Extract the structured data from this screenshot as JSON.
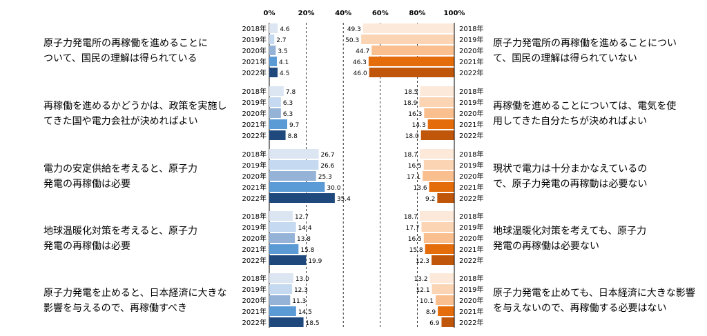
{
  "chart_data": {
    "type": "bar",
    "orientation": "horizontal-diverging",
    "axis": {
      "ticks": [
        "0%",
        "20%",
        "40%",
        "60%",
        "80%",
        "100%"
      ],
      "xlim": [
        0,
        100
      ],
      "grid": "dashed"
    },
    "years": [
      "2018年",
      "2019年",
      "2020年",
      "2021年",
      "2022年"
    ],
    "colors": {
      "left": [
        "#dce6f2",
        "#c5d9f1",
        "#95b3d7",
        "#5b9bd5",
        "#1f497d"
      ],
      "right": [
        "#fde9d9",
        "#fbd4b4",
        "#fabf8f",
        "#e46c0a",
        "#c0560a"
      ]
    },
    "groups": [
      {
        "left_label": [
          "原子力発電所の再稼働を進めることに",
          "ついて、国民の理解は得られている"
        ],
        "right_label": [
          "原子力発電所の再稼働を進めることについ",
          "て、国民の理解は得られていない"
        ],
        "left_values": [
          4.6,
          2.7,
          3.5,
          4.1,
          4.5
        ],
        "right_values": [
          49.3,
          50.3,
          44.7,
          46.3,
          46.0
        ],
        "left_text": [
          "4.6",
          "2.7",
          "3.5",
          "4.1",
          "4.5"
        ],
        "right_text": [
          "49.3",
          "50.3",
          "44.7",
          "46.3",
          "46.0"
        ]
      },
      {
        "left_label": [
          "再稼働を進めるかどうかは、政策を実施し",
          "てきた国や電力会社が決めればよい"
        ],
        "right_label": [
          "再稼働を進めることについては、電気を使",
          "用してきた自分たちが決めればよい"
        ],
        "left_values": [
          7.8,
          6.3,
          6.3,
          9.7,
          8.8
        ],
        "right_values": [
          18.5,
          18.9,
          16.3,
          14.3,
          18.0
        ],
        "left_text": [
          "7.8",
          "6.3",
          "6.3",
          "9.7",
          "8.8"
        ],
        "right_text": [
          "18.5",
          "18.9",
          "16.3",
          "14.3",
          "18.0"
        ]
      },
      {
        "left_label": [
          "電力の安定供給を考えると、原子力",
          "発電の再稼働は必要"
        ],
        "right_label": [
          "現状で電力は十分まかなえているの",
          "で、原子力発電の再稼動は必要ない"
        ],
        "left_values": [
          26.7,
          26.6,
          25.3,
          30.0,
          35.4
        ],
        "right_values": [
          18.7,
          16.5,
          17.1,
          13.6,
          9.2
        ],
        "left_text": [
          "26.7",
          "26.6",
          "25.3",
          "30.0",
          "35.4"
        ],
        "right_text": [
          "18.7",
          "16.5",
          "17.1",
          "13.6",
          "9.2"
        ]
      },
      {
        "left_label": [
          "地球温暖化対策を考えると、原子力",
          "発電の再稼働は必要"
        ],
        "right_label": [
          "地球温暖化対策を考えても、原子力",
          "発電の再稼働は必要ない"
        ],
        "left_values": [
          12.7,
          14.4,
          13.8,
          15.8,
          19.9
        ],
        "right_values": [
          18.7,
          17.7,
          16.5,
          15.8,
          12.3
        ],
        "left_text": [
          "12.7",
          "14.4",
          "13.8",
          "15.8",
          "19.9"
        ],
        "right_text": [
          "18.7",
          "17.7",
          "16.5",
          "15.8",
          "12.3"
        ]
      },
      {
        "left_label": [
          "原子力発電を止めると、日本経済に大きな",
          "影響を与えるので、再稼働すべき"
        ],
        "right_label": [
          "原子力発電を止めても、日本経済に大きな影響",
          "を与えないので、再稼働する必要はない"
        ],
        "left_values": [
          13.0,
          12.3,
          11.3,
          14.5,
          18.5
        ],
        "right_values": [
          13.2,
          12.1,
          10.1,
          8.9,
          6.9
        ],
        "left_text": [
          "13.0",
          "12.3",
          "11.3",
          "14.5",
          "18.5"
        ],
        "right_text": [
          "13.2",
          "12.1",
          "10.1",
          "8.9",
          "6.9"
        ]
      }
    ]
  }
}
